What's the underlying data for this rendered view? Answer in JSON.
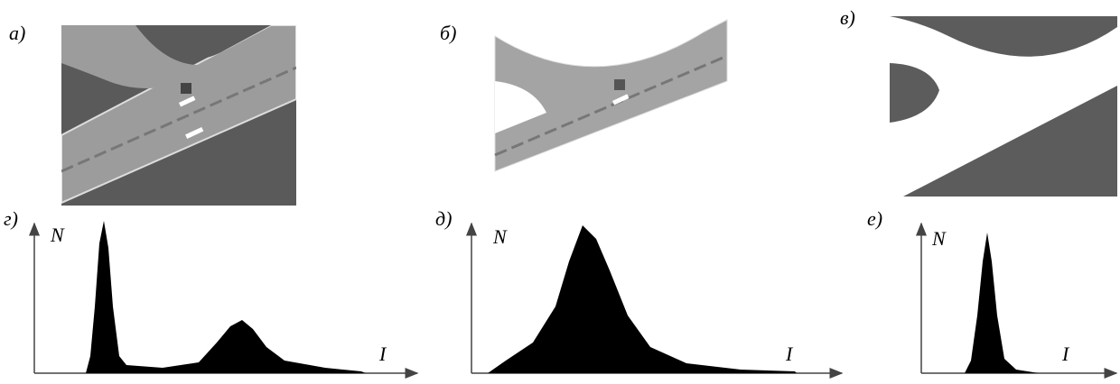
{
  "panels": [
    {
      "label": "а)"
    },
    {
      "label": "б)"
    },
    {
      "label": "в)"
    }
  ],
  "histograms": [
    {
      "label": "г)",
      "y_label": "N",
      "x_label": "I"
    },
    {
      "label": "д)",
      "y_label": "N",
      "x_label": "I"
    },
    {
      "label": "е)",
      "y_label": "N",
      "x_label": "I"
    }
  ]
}
